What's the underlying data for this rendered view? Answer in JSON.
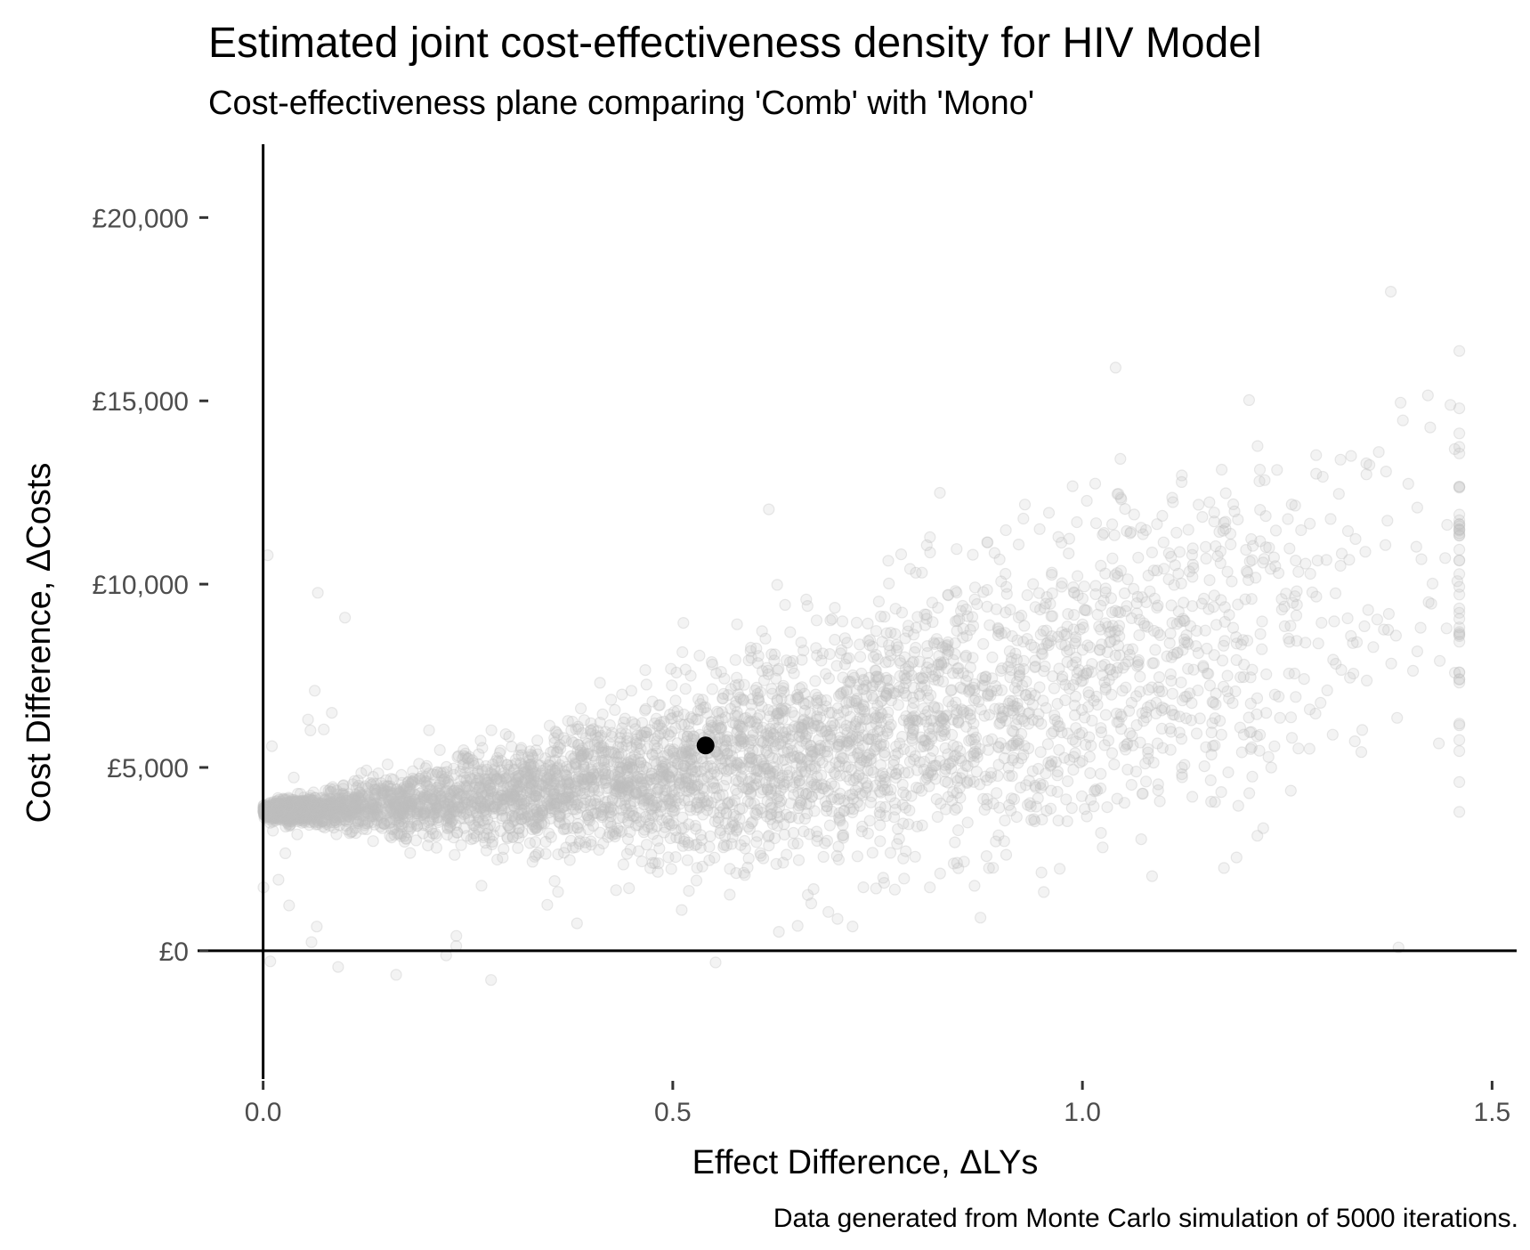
{
  "chart_data": {
    "type": "scatter",
    "title": "Estimated joint cost-effectiveness density for HIV Model",
    "subtitle": "Cost-effectiveness plane comparing 'Comb' with 'Mono'",
    "xlabel": "Effect Difference,  ΔLYs",
    "ylabel": "Cost Difference,  ΔCosts",
    "caption": "Data generated from Monte Carlo simulation of 5000 iterations.",
    "xlim": [
      -0.08,
      1.53
    ],
    "ylim": [
      -3500,
      22000
    ],
    "x_ticks": [
      0.0,
      0.5,
      1.0,
      1.5
    ],
    "x_tick_labels": [
      "0.0",
      "0.5",
      "1.0",
      "1.5"
    ],
    "y_ticks": [
      0,
      5000,
      10000,
      15000,
      20000
    ],
    "y_tick_labels": [
      "£0",
      "£5,000",
      "£10,000",
      "£15,000",
      "£20,000"
    ],
    "grid": false,
    "iterations": 5000,
    "point_color": "#bfbfbf",
    "point_opacity": 0.18,
    "mean_point": {
      "x": 0.54,
      "y": 5600
    },
    "mean_point_color": "#000000"
  }
}
